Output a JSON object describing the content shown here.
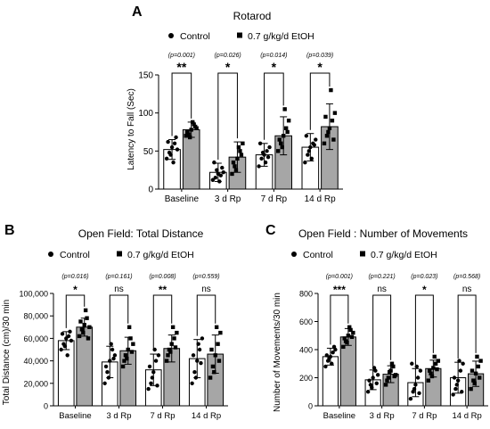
{
  "legend": {
    "control": "Control",
    "etoh": "0.7 g/kg/d EtOH"
  },
  "colors": {
    "control_fill": "#ffffff",
    "etoh_fill": "#a6a6a6",
    "ink": "#000000"
  },
  "chart_data": [
    {
      "type": "bar",
      "panel_letter": "A",
      "title": "Rotarod",
      "ylabel": "Latency to Fall (Sec)",
      "ylim": [
        0,
        150
      ],
      "yticks": [
        "0",
        "50",
        "100",
        "150"
      ],
      "categories": [
        "Baseline",
        "3 d Rp",
        "7 d Rp",
        "14 d Rp"
      ],
      "series": [
        {
          "name": "Control",
          "values": [
            52,
            22,
            45,
            55
          ],
          "errors": [
            13,
            12,
            15,
            18
          ],
          "points": [
            [
              40,
              48,
              55,
              60,
              52,
              62,
              45,
              35,
              68
            ],
            [
              12,
              15,
              20,
              18,
              22,
              35,
              25,
              10,
              28
            ],
            [
              30,
              40,
              45,
              50,
              55,
              60,
              48,
              35,
              42
            ],
            [
              35,
              45,
              55,
              60,
              65,
              70,
              50,
              40,
              58
            ]
          ]
        },
        {
          "name": "0.7 g/kg/d EtOH",
          "values": [
            78,
            42,
            70,
            82
          ],
          "errors": [
            10,
            20,
            25,
            30
          ],
          "points": [
            [
              70,
              72,
              78,
              85,
              80,
              75,
              68,
              88,
              82
            ],
            [
              20,
              30,
              40,
              50,
              60,
              35,
              25,
              55,
              45
            ],
            [
              50,
              60,
              70,
              80,
              90,
              65,
              55,
              105,
              75
            ],
            [
              60,
              70,
              80,
              90,
              100,
              95,
              75,
              130,
              65
            ]
          ]
        }
      ],
      "p_values": [
        "(p=0.001)",
        "(p=0.026)",
        "(p=0.014)",
        "(p=0.039)"
      ],
      "significance": [
        "**",
        "*",
        "*",
        "*"
      ]
    },
    {
      "type": "bar",
      "panel_letter": "B",
      "title": "Open Field: Total Distance",
      "ylabel": "Total Distance (cm)/30 min",
      "ylim": [
        0,
        100000
      ],
      "yticks": [
        "0",
        "20,000",
        "40,000",
        "60,000",
        "80,000",
        "100,000"
      ],
      "categories": [
        "Baseline",
        "3 d Rp",
        "7 d Rp",
        "14 d Rp"
      ],
      "series": [
        {
          "name": "Control",
          "values": [
            58000,
            39000,
            32000,
            42000
          ],
          "errors": [
            8000,
            14000,
            14000,
            17000
          ],
          "points": [
            [
              50000,
              55000,
              60000,
              62000,
              58000,
              64000,
              53000,
              45000,
              66000
            ],
            [
              20000,
              30000,
              40000,
              50000,
              45000,
              35000,
              25000,
              55000,
              42000
            ],
            [
              15000,
              20000,
              30000,
              40000,
              45000,
              35000,
              25000,
              50000,
              18000
            ],
            [
              20000,
              30000,
              40000,
              50000,
              60000,
              45000,
              25000,
              55000,
              38000
            ]
          ]
        },
        {
          "name": "0.7 g/kg/d EtOH",
          "values": [
            70000,
            49000,
            51000,
            46000
          ],
          "errors": [
            8000,
            12000,
            12000,
            17000
          ],
          "points": [
            [
              62000,
              68000,
              72000,
              78000,
              70000,
              75000,
              65000,
              85000,
              60000
            ],
            [
              35000,
              45000,
              50000,
              60000,
              55000,
              40000,
              42000,
              70000,
              48000
            ],
            [
              40000,
              50000,
              55000,
              60000,
              65000,
              45000,
              48000,
              70000,
              52000
            ],
            [
              25000,
              35000,
              45000,
              55000,
              65000,
              50000,
              30000,
              70000,
              40000
            ]
          ]
        }
      ],
      "p_values": [
        "(p=0.016)",
        "(p=0.161)",
        "(p=0.008)",
        "(p=0.559)"
      ],
      "significance": [
        "*",
        "ns",
        "**",
        "ns"
      ]
    },
    {
      "type": "bar",
      "panel_letter": "C",
      "title": "Open Field : Number of Movements",
      "ylabel": "Number of Movements/30 min",
      "ylim": [
        0,
        800
      ],
      "yticks": [
        "0",
        "200",
        "400",
        "600",
        "800"
      ],
      "categories": [
        "Baseline",
        "3 d Rp",
        "7 d Rp",
        "14 d Rp"
      ],
      "series": [
        {
          "name": "Control",
          "values": [
            350,
            185,
            165,
            200
          ],
          "errors": [
            60,
            70,
            100,
            110
          ],
          "points": [
            [
              280,
              320,
              350,
              380,
              400,
              360,
              340,
              300,
              420
            ],
            [
              100,
              150,
              200,
              250,
              220,
              180,
              130,
              270,
              160
            ],
            [
              50,
              100,
              150,
              200,
              250,
              300,
              120,
              280,
              90
            ],
            [
              80,
              120,
              180,
              250,
              300,
              200,
              150,
              320,
              100
            ]
          ]
        },
        {
          "name": "0.7 g/kg/d EtOH",
          "values": [
            490,
            225,
            265,
            228
          ],
          "errors": [
            60,
            60,
            60,
            90
          ],
          "points": [
            [
              420,
              460,
              500,
              540,
              520,
              480,
              450,
              560,
              490
            ],
            [
              150,
              200,
              250,
              280,
              220,
              180,
              240,
              300,
              210
            ],
            [
              180,
              230,
              270,
              300,
              320,
              250,
              210,
              350,
              260
            ],
            [
              120,
              180,
              230,
              280,
              320,
              250,
              160,
              350,
              200
            ]
          ]
        }
      ],
      "p_values": [
        "(p=0.001)",
        "(p=0.221)",
        "(p=0.023)",
        "(p=0.568)"
      ],
      "significance": [
        "***",
        "ns",
        "*",
        "ns"
      ]
    }
  ]
}
